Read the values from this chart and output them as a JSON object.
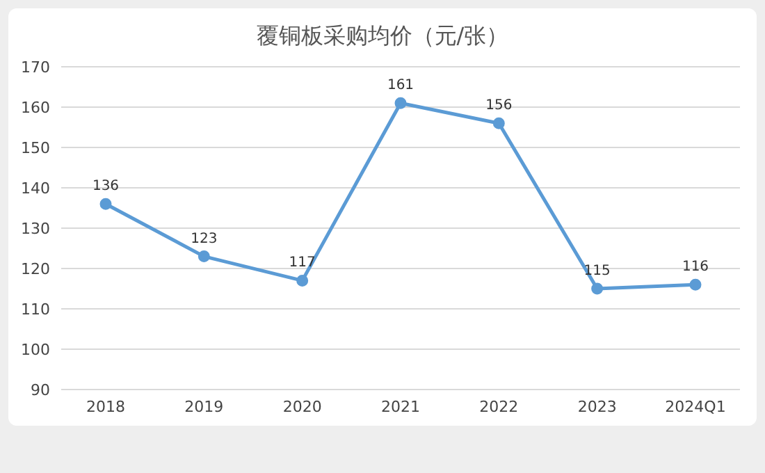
{
  "chart_data": {
    "type": "line",
    "title": "覆铜板采购均价（元/张）",
    "categories": [
      "2018",
      "2019",
      "2020",
      "2021",
      "2022",
      "2023",
      "2024Q1"
    ],
    "series": [
      {
        "color": "#5b9bd5",
        "values": [
          136,
          123,
          117,
          161,
          156,
          115,
          116
        ]
      }
    ],
    "ylim": [
      90,
      170
    ],
    "yticks": [
      90,
      100,
      110,
      120,
      130,
      140,
      150,
      160,
      170
    ],
    "grid": "y",
    "marker": "circle",
    "data_labels": true
  }
}
